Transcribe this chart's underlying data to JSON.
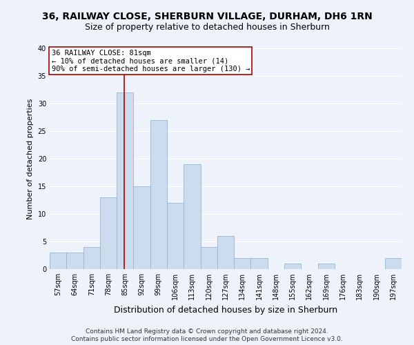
{
  "title1": "36, RAILWAY CLOSE, SHERBURN VILLAGE, DURHAM, DH6 1RN",
  "title2": "Size of property relative to detached houses in Sherburn",
  "xlabel": "Distribution of detached houses by size in Sherburn",
  "ylabel": "Number of detached properties",
  "categories": [
    "57sqm",
    "64sqm",
    "71sqm",
    "78sqm",
    "85sqm",
    "92sqm",
    "99sqm",
    "106sqm",
    "113sqm",
    "120sqm",
    "127sqm",
    "134sqm",
    "141sqm",
    "148sqm",
    "155sqm",
    "162sqm",
    "169sqm",
    "176sqm",
    "183sqm",
    "190sqm",
    "197sqm"
  ],
  "values": [
    3,
    3,
    4,
    13,
    32,
    15,
    27,
    12,
    19,
    4,
    6,
    2,
    2,
    0,
    1,
    0,
    1,
    0,
    0,
    0,
    2
  ],
  "bar_color": "#ccdcee",
  "bar_edge_color": "#9ab4cc",
  "background_color": "#eef2fa",
  "grid_color": "#ffffff",
  "annotation_line_color": "#aa0000",
  "annotation_text_line1": "36 RAILWAY CLOSE: 81sqm",
  "annotation_text_line2": "← 10% of detached houses are smaller (14)",
  "annotation_text_line3": "90% of semi-detached houses are larger (130) →",
  "annotation_box_color": "#ffffff",
  "annotation_box_edge": "#aa0000",
  "ylim": [
    0,
    40
  ],
  "yticks": [
    0,
    5,
    10,
    15,
    20,
    25,
    30,
    35,
    40
  ],
  "footnote1": "Contains HM Land Registry data © Crown copyright and database right 2024.",
  "footnote2": "Contains public sector information licensed under the Open Government Licence v3.0.",
  "title1_fontsize": 10,
  "title2_fontsize": 9,
  "xlabel_fontsize": 9,
  "ylabel_fontsize": 8,
  "tick_fontsize": 7,
  "annotation_fontsize": 7.5,
  "footnote_fontsize": 6.5
}
